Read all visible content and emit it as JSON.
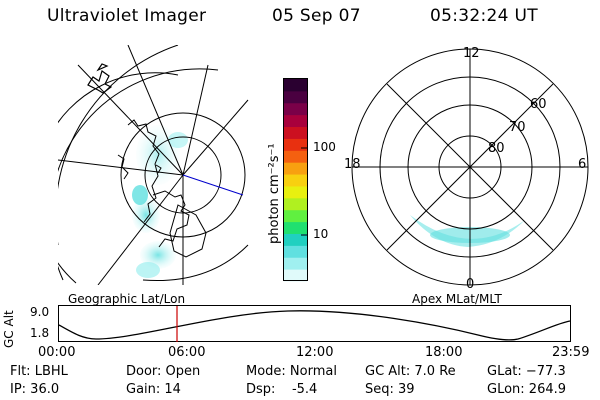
{
  "header": {
    "title": "Ultraviolet Imager",
    "date": "05 Sep 07",
    "time": "05:32:24 UT"
  },
  "colorbar": {
    "ticks": [
      "100",
      "10"
    ],
    "unit": "photon cm⁻²s⁻¹",
    "colors": [
      "#2a0030",
      "#4a0040",
      "#7a0048",
      "#a8003c",
      "#cc1020",
      "#e83010",
      "#f46010",
      "#f8a010",
      "#f8d010",
      "#e8f010",
      "#b0f020",
      "#60f040",
      "#20e070",
      "#20d0c0",
      "#60e0e0",
      "#a0f0f0",
      "#e0fafa"
    ]
  },
  "left_map": {
    "label": "Geographic Lat/Lon"
  },
  "right_map": {
    "label": "Apex MLat/MLT",
    "mlt_labels": {
      "top": "12",
      "left": "18",
      "right": "6",
      "bottom": "0"
    },
    "lat_labels": [
      "60",
      "70",
      "80"
    ]
  },
  "alt_plot": {
    "ylabel": "GC Alt",
    "yticks": [
      "9.0",
      "1.8"
    ],
    "xticks": [
      "00:00",
      "06:00",
      "12:00",
      "18:00",
      "23:59"
    ],
    "marker_color": "#cc0000"
  },
  "info": {
    "filter": "Flt: LBHL",
    "ip": "IP: 36.0",
    "door": "Door: Open",
    "gain": "Gain: 14",
    "mode": "Mode: Normal",
    "dsp": "Dsp:    -5.4",
    "gc_alt": "GC Alt: 7.0 Re",
    "seq": "Seq: 39",
    "glat": "GLat: −77.3",
    "glon": "GLon: 264.9"
  }
}
